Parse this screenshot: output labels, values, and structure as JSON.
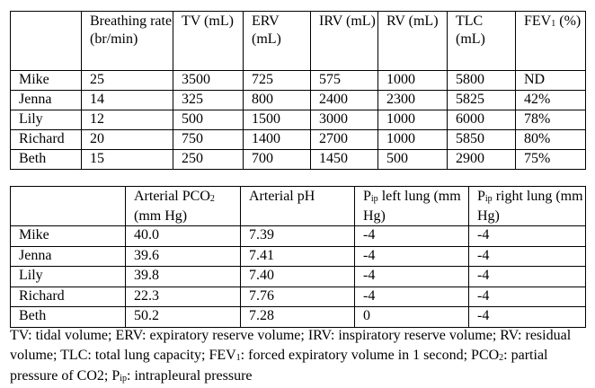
{
  "table1": {
    "headers": [
      {
        "main": "",
        "sub": "",
        "rest": ""
      },
      {
        "main": "Breathing rate (br/min)",
        "sub": "",
        "rest": ""
      },
      {
        "main": "TV (mL)",
        "sub": "",
        "rest": ""
      },
      {
        "main": "ERV (mL)",
        "sub": "",
        "rest": ""
      },
      {
        "main": "IRV (mL)",
        "sub": "",
        "rest": ""
      },
      {
        "main": "RV (mL)",
        "sub": "",
        "rest": ""
      },
      {
        "main": "TLC (mL)",
        "sub": "",
        "rest": ""
      },
      {
        "main": "FEV",
        "sub": "1",
        "rest": " (%)"
      }
    ],
    "rows": [
      [
        "Mike",
        "25",
        "3500",
        "725",
        "575",
        "1000",
        "5800",
        "ND"
      ],
      [
        "Jenna",
        "14",
        "325",
        "800",
        "2400",
        "2300",
        "5825",
        "42%"
      ],
      [
        "Lily",
        "12",
        "500",
        "1500",
        "3000",
        "1000",
        "6000",
        "78%"
      ],
      [
        "Richard",
        "20",
        "750",
        "1400",
        "2700",
        "1000",
        "5850",
        "80%"
      ],
      [
        "Beth",
        "15",
        "250",
        "700",
        "1450",
        "500",
        "2900",
        "75%"
      ]
    ]
  },
  "table2": {
    "headers": [
      {
        "main": "",
        "sub": "",
        "rest": ""
      },
      {
        "main": "Arterial PCO",
        "sub": "2",
        "rest": " (mm Hg)"
      },
      {
        "main": "Arterial pH",
        "sub": "",
        "rest": ""
      },
      {
        "main": "P",
        "sub": "ip",
        "rest": " left lung (mm Hg)"
      },
      {
        "main": "P",
        "sub": "ip",
        "rest": " right lung (mm Hg)"
      }
    ],
    "rows": [
      [
        "Mike",
        "40.0",
        "7.39",
        "-4",
        "-4"
      ],
      [
        "Jenna",
        "39.6",
        "7.41",
        "-4",
        "-4"
      ],
      [
        "Lily",
        "39.8",
        "7.40",
        "-4",
        "-4"
      ],
      [
        "Richard",
        "22.3",
        "7.76",
        "-4",
        "-4"
      ],
      [
        "Beth",
        "50.2",
        "7.28",
        "0",
        "-4"
      ]
    ]
  },
  "footnote": [
    {
      "text": "TV: tidal volume; ERV: expiratory reserve volume; IRV: inspiratory reserve volume; RV: residual volume; TLC: total lung capacity; FEV",
      "sub": ""
    },
    {
      "text": "",
      "sub": "1"
    },
    {
      "text": ": forced expiratory volume in 1 second; PCO",
      "sub": ""
    },
    {
      "text": "",
      "sub": "2"
    },
    {
      "text": ": partial pressure of CO2; P",
      "sub": ""
    },
    {
      "text": "",
      "sub": "ip"
    },
    {
      "text": ": intrapleural pressure",
      "sub": ""
    }
  ]
}
